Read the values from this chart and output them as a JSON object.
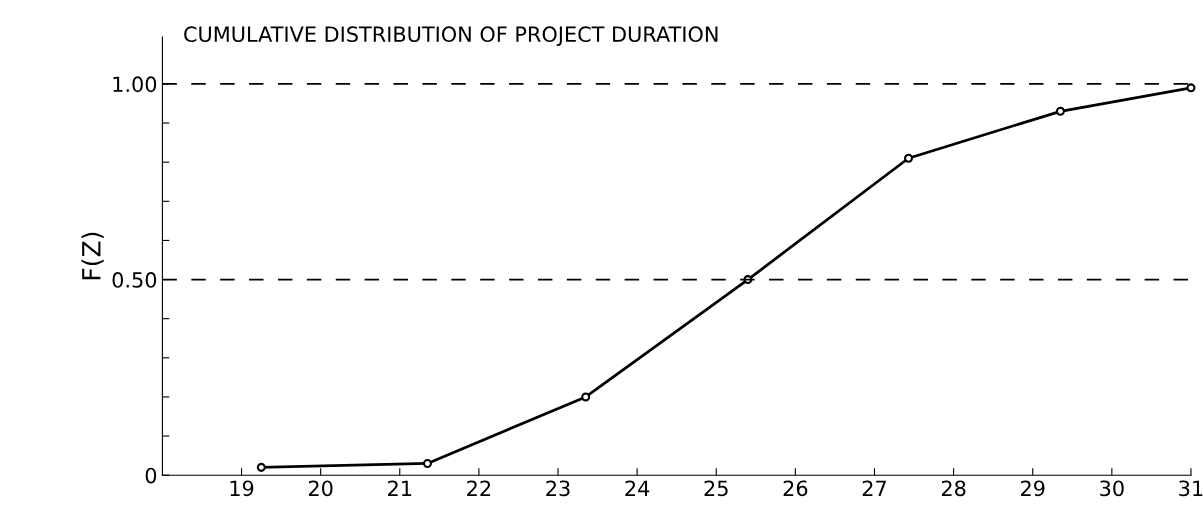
{
  "chart_data": {
    "type": "line",
    "title": "CUMULATIVE DISTRIBUTION OF PROJECT DURATION",
    "ylabel": "F(Z)",
    "series": [
      {
        "color": "#000000",
        "x": [
          19.25,
          21.35,
          23.35,
          25.4,
          27.43,
          29.35,
          31
        ],
        "values": [
          0.02,
          0.03,
          0.2,
          0.5,
          0.81,
          0.93,
          0.99
        ]
      }
    ],
    "xlim": [
      18,
      31
    ],
    "xticks": [
      19,
      20,
      21,
      22,
      23,
      24,
      25,
      26,
      27,
      28,
      29,
      30,
      31
    ],
    "ylim": [
      0,
      1.12
    ],
    "yticks": [
      {
        "value": 0,
        "label": "0"
      },
      {
        "value": 0.1,
        "label": null
      },
      {
        "value": 0.2,
        "label": null
      },
      {
        "value": 0.3,
        "label": null
      },
      {
        "value": 0.4,
        "label": null
      },
      {
        "value": 0.5,
        "label": "0.50"
      },
      {
        "value": 0.6,
        "label": null
      },
      {
        "value": 0.7,
        "label": null
      },
      {
        "value": 0.8,
        "label": null
      },
      {
        "value": 0.9,
        "label": null
      },
      {
        "value": 1.0,
        "label": "1.00"
      }
    ],
    "ref_lines": [
      {
        "axis": "y",
        "value": 1.0,
        "line_style": "dashed"
      },
      {
        "axis": "y",
        "value": 0.5,
        "line_style": "dashed"
      }
    ],
    "marker": "circle",
    "line_style": "solid",
    "grid": false,
    "legend": false
  }
}
